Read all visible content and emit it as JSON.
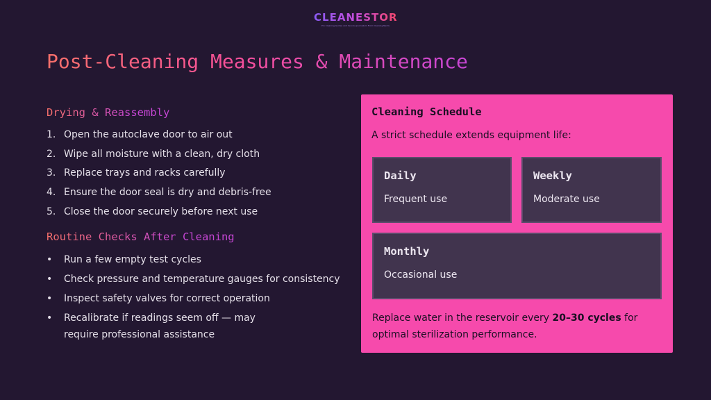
{
  "logo": {
    "word": "CLEANESTOR",
    "tagline": "Pro Cleaning Guides And Service Journalism From Cleaning Nerds"
  },
  "title": "Post-Cleaning Measures & Maintenance",
  "drying": {
    "heading": "Drying & Reassembly",
    "steps": [
      "Open the autoclave door to air out",
      "Wipe all moisture with a clean, dry cloth",
      "Replace trays and racks carefully",
      "Ensure the door seal is dry and debris-free",
      "Close the door securely before next use"
    ]
  },
  "checks": {
    "heading": "Routine Checks After Cleaning",
    "items": [
      "Run a few empty test cycles",
      "Check pressure and temperature gauges for consistency",
      "Inspect safety valves for correct operation",
      "Recalibrate if readings seem off — may require professional assistance"
    ]
  },
  "schedule": {
    "title": "Cleaning Schedule",
    "intro": "A strict schedule extends equipment life:",
    "boxes": [
      {
        "title": "Daily",
        "desc": "Frequent use"
      },
      {
        "title": "Weekly",
        "desc": "Moderate use"
      },
      {
        "title": "Monthly",
        "desc": "Occasional use"
      }
    ],
    "footer_pre": "Replace water in the reservoir every ",
    "footer_bold": "20–30 cycles",
    "footer_post": " for optimal sterilization performance."
  },
  "colors": {
    "background": "#231731",
    "card": "#f64aac",
    "box": "#41344e"
  }
}
